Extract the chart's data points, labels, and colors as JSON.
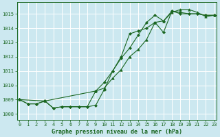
{
  "title": "Graphe pression niveau de la mer (hPa)",
  "bg_color": "#cce8f0",
  "grid_color": "#ffffff",
  "line_color": "#1a6620",
  "xlim": [
    -0.3,
    23.3
  ],
  "ylim": [
    1007.6,
    1015.8
  ],
  "yticks": [
    1008,
    1009,
    1010,
    1011,
    1012,
    1013,
    1014,
    1015
  ],
  "xticks": [
    0,
    1,
    2,
    3,
    4,
    5,
    6,
    7,
    8,
    9,
    10,
    11,
    12,
    13,
    14,
    15,
    16,
    17,
    18,
    19,
    20,
    21,
    22,
    23
  ],
  "series": [
    {
      "x": [
        0,
        1,
        2,
        3,
        4,
        5,
        6,
        7,
        8,
        9,
        10,
        11,
        12,
        13,
        14,
        15,
        16,
        17,
        18,
        19,
        20,
        21,
        22,
        23
      ],
      "y": [
        1009.0,
        1008.7,
        1008.7,
        1008.9,
        1008.4,
        1008.5,
        1008.5,
        1008.5,
        1008.5,
        1008.6,
        1009.7,
        1011.0,
        1012.0,
        1013.6,
        1013.8,
        1014.0,
        1014.4,
        1013.7,
        1015.2,
        1015.0,
        1015.0,
        1015.0,
        1014.9,
        1014.9
      ],
      "marker": "D",
      "markersize": 2.0,
      "linewidth": 0.8
    },
    {
      "x": [
        0,
        1,
        2,
        3,
        4,
        5,
        6,
        7,
        8,
        9,
        10,
        11,
        12,
        13,
        14,
        15,
        16,
        17,
        18,
        19,
        20,
        21,
        22,
        23
      ],
      "y": [
        1009.0,
        1008.7,
        1008.7,
        1008.9,
        1008.4,
        1008.5,
        1008.5,
        1008.5,
        1008.5,
        1009.6,
        1010.2,
        1011.0,
        1011.9,
        1012.6,
        1013.5,
        1014.4,
        1014.9,
        1014.5,
        1015.2,
        1015.1,
        1015.0,
        1015.0,
        1014.9,
        1014.9
      ],
      "marker": "D",
      "markersize": 2.0,
      "linewidth": 0.8
    },
    {
      "x": [
        0,
        3,
        9,
        10,
        11,
        12,
        13,
        14,
        15,
        16,
        17,
        18,
        19,
        20,
        21,
        22,
        23
      ],
      "y": [
        1009.0,
        1008.9,
        1009.6,
        1009.8,
        1010.5,
        1011.1,
        1012.0,
        1012.5,
        1013.2,
        1014.4,
        1014.5,
        1015.1,
        1015.3,
        1015.3,
        1015.1,
        1014.8,
        1014.9
      ],
      "marker": "^",
      "markersize": 2.5,
      "linewidth": 0.8
    }
  ]
}
